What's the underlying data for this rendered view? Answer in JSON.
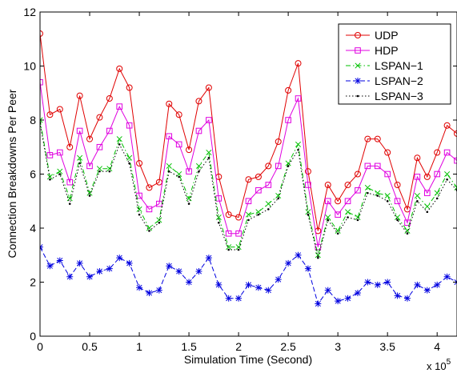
{
  "chart_data": {
    "type": "line",
    "title": "",
    "xlabel": "Simulation Time (Second)",
    "ylabel": "Connection Breakdowns Per Peer",
    "x_exponent_label": {
      "base": "x 10",
      "exp": "5"
    },
    "xlim": [
      0,
      4.2
    ],
    "ylim": [
      0,
      12
    ],
    "x_ticks": [
      0,
      0.5,
      1,
      1.5,
      2,
      2.5,
      3,
      3.5,
      4
    ],
    "x_tick_labels": [
      "0",
      "0.5",
      "1",
      "1.5",
      "2",
      "2.5",
      "3",
      "3.5",
      "4"
    ],
    "y_ticks": [
      0,
      2,
      4,
      6,
      8,
      10,
      12
    ],
    "y_tick_labels": [
      "0",
      "2",
      "4",
      "6",
      "8",
      "10",
      "12"
    ],
    "grid": false,
    "legend_position": "top-right",
    "x": [
      0,
      0.1,
      0.2,
      0.3,
      0.4,
      0.5,
      0.6,
      0.7,
      0.8,
      0.9,
      1.0,
      1.1,
      1.2,
      1.3,
      1.4,
      1.5,
      1.6,
      1.7,
      1.8,
      1.9,
      2.0,
      2.1,
      2.2,
      2.3,
      2.4,
      2.5,
      2.6,
      2.7,
      2.8,
      2.9,
      3.0,
      3.1,
      3.2,
      3.3,
      3.4,
      3.5,
      3.6,
      3.7,
      3.8,
      3.9,
      4.0,
      4.1,
      4.2
    ],
    "series": [
      {
        "name": "UDP",
        "color": "#e00000",
        "marker": "circle",
        "dash": "solid",
        "values": [
          11.2,
          8.2,
          8.4,
          7.0,
          8.9,
          7.3,
          8.1,
          8.8,
          9.9,
          9.2,
          6.4,
          5.5,
          5.7,
          8.6,
          8.2,
          6.9,
          8.7,
          9.2,
          5.9,
          4.5,
          4.4,
          5.8,
          5.9,
          6.3,
          7.2,
          9.1,
          10.1,
          6.1,
          3.9,
          5.6,
          5.0,
          5.6,
          6.0,
          7.3,
          7.3,
          6.8,
          5.6,
          4.7,
          6.6,
          5.9,
          6.8,
          7.8,
          7.5
        ]
      },
      {
        "name": "HDP",
        "color": "#e000e0",
        "marker": "square",
        "dash": "solid",
        "values": [
          9.4,
          6.7,
          6.8,
          5.7,
          7.6,
          6.3,
          7.0,
          7.6,
          8.5,
          7.8,
          5.2,
          4.7,
          4.9,
          7.4,
          7.1,
          6.1,
          7.6,
          8.0,
          5.1,
          3.8,
          3.8,
          5.0,
          5.4,
          5.6,
          6.3,
          8.0,
          8.8,
          5.6,
          3.3,
          5.0,
          4.5,
          5.0,
          5.4,
          6.3,
          6.3,
          6.0,
          5.0,
          4.2,
          5.9,
          5.3,
          6.0,
          6.8,
          6.5
        ]
      },
      {
        "name": "LSPAN−1",
        "color": "#00c000",
        "marker": "x",
        "dash": "dashdot",
        "values": [
          8.0,
          5.9,
          6.1,
          5.1,
          6.6,
          5.3,
          6.2,
          6.2,
          7.3,
          6.6,
          4.7,
          4.0,
          4.3,
          6.3,
          6.0,
          5.1,
          6.3,
          6.8,
          4.4,
          3.3,
          3.3,
          4.5,
          4.6,
          4.9,
          5.2,
          6.4,
          7.1,
          4.6,
          3.0,
          4.4,
          3.9,
          4.6,
          4.4,
          5.5,
          5.3,
          5.2,
          4.4,
          3.9,
          5.2,
          4.8,
          5.3,
          6.0,
          5.5
        ]
      },
      {
        "name": "LSPAN−2",
        "color": "#0000e0",
        "marker": "asterisk",
        "dash": "dashed",
        "values": [
          3.3,
          2.6,
          2.8,
          2.2,
          2.7,
          2.2,
          2.4,
          2.5,
          2.9,
          2.7,
          1.8,
          1.6,
          1.7,
          2.6,
          2.4,
          2.0,
          2.4,
          2.9,
          1.9,
          1.4,
          1.4,
          1.9,
          1.8,
          1.7,
          2.1,
          2.7,
          3.0,
          2.5,
          1.2,
          1.7,
          1.3,
          1.4,
          1.6,
          2.0,
          1.9,
          2.0,
          1.5,
          1.4,
          1.9,
          1.7,
          1.9,
          2.2,
          2.0
        ]
      },
      {
        "name": "LSPAN−3",
        "color": "#000000",
        "marker": "dot",
        "dash": "dotted",
        "values": [
          7.9,
          5.8,
          6.0,
          4.9,
          6.4,
          5.2,
          6.1,
          6.1,
          7.1,
          6.4,
          4.5,
          3.9,
          4.2,
          6.1,
          5.9,
          4.9,
          6.1,
          6.6,
          4.2,
          3.2,
          3.2,
          4.3,
          4.5,
          4.7,
          5.1,
          6.3,
          6.9,
          4.5,
          2.9,
          4.3,
          3.8,
          4.4,
          4.3,
          5.3,
          5.2,
          5.0,
          4.3,
          3.8,
          5.0,
          4.6,
          5.1,
          5.8,
          5.4
        ]
      }
    ]
  }
}
